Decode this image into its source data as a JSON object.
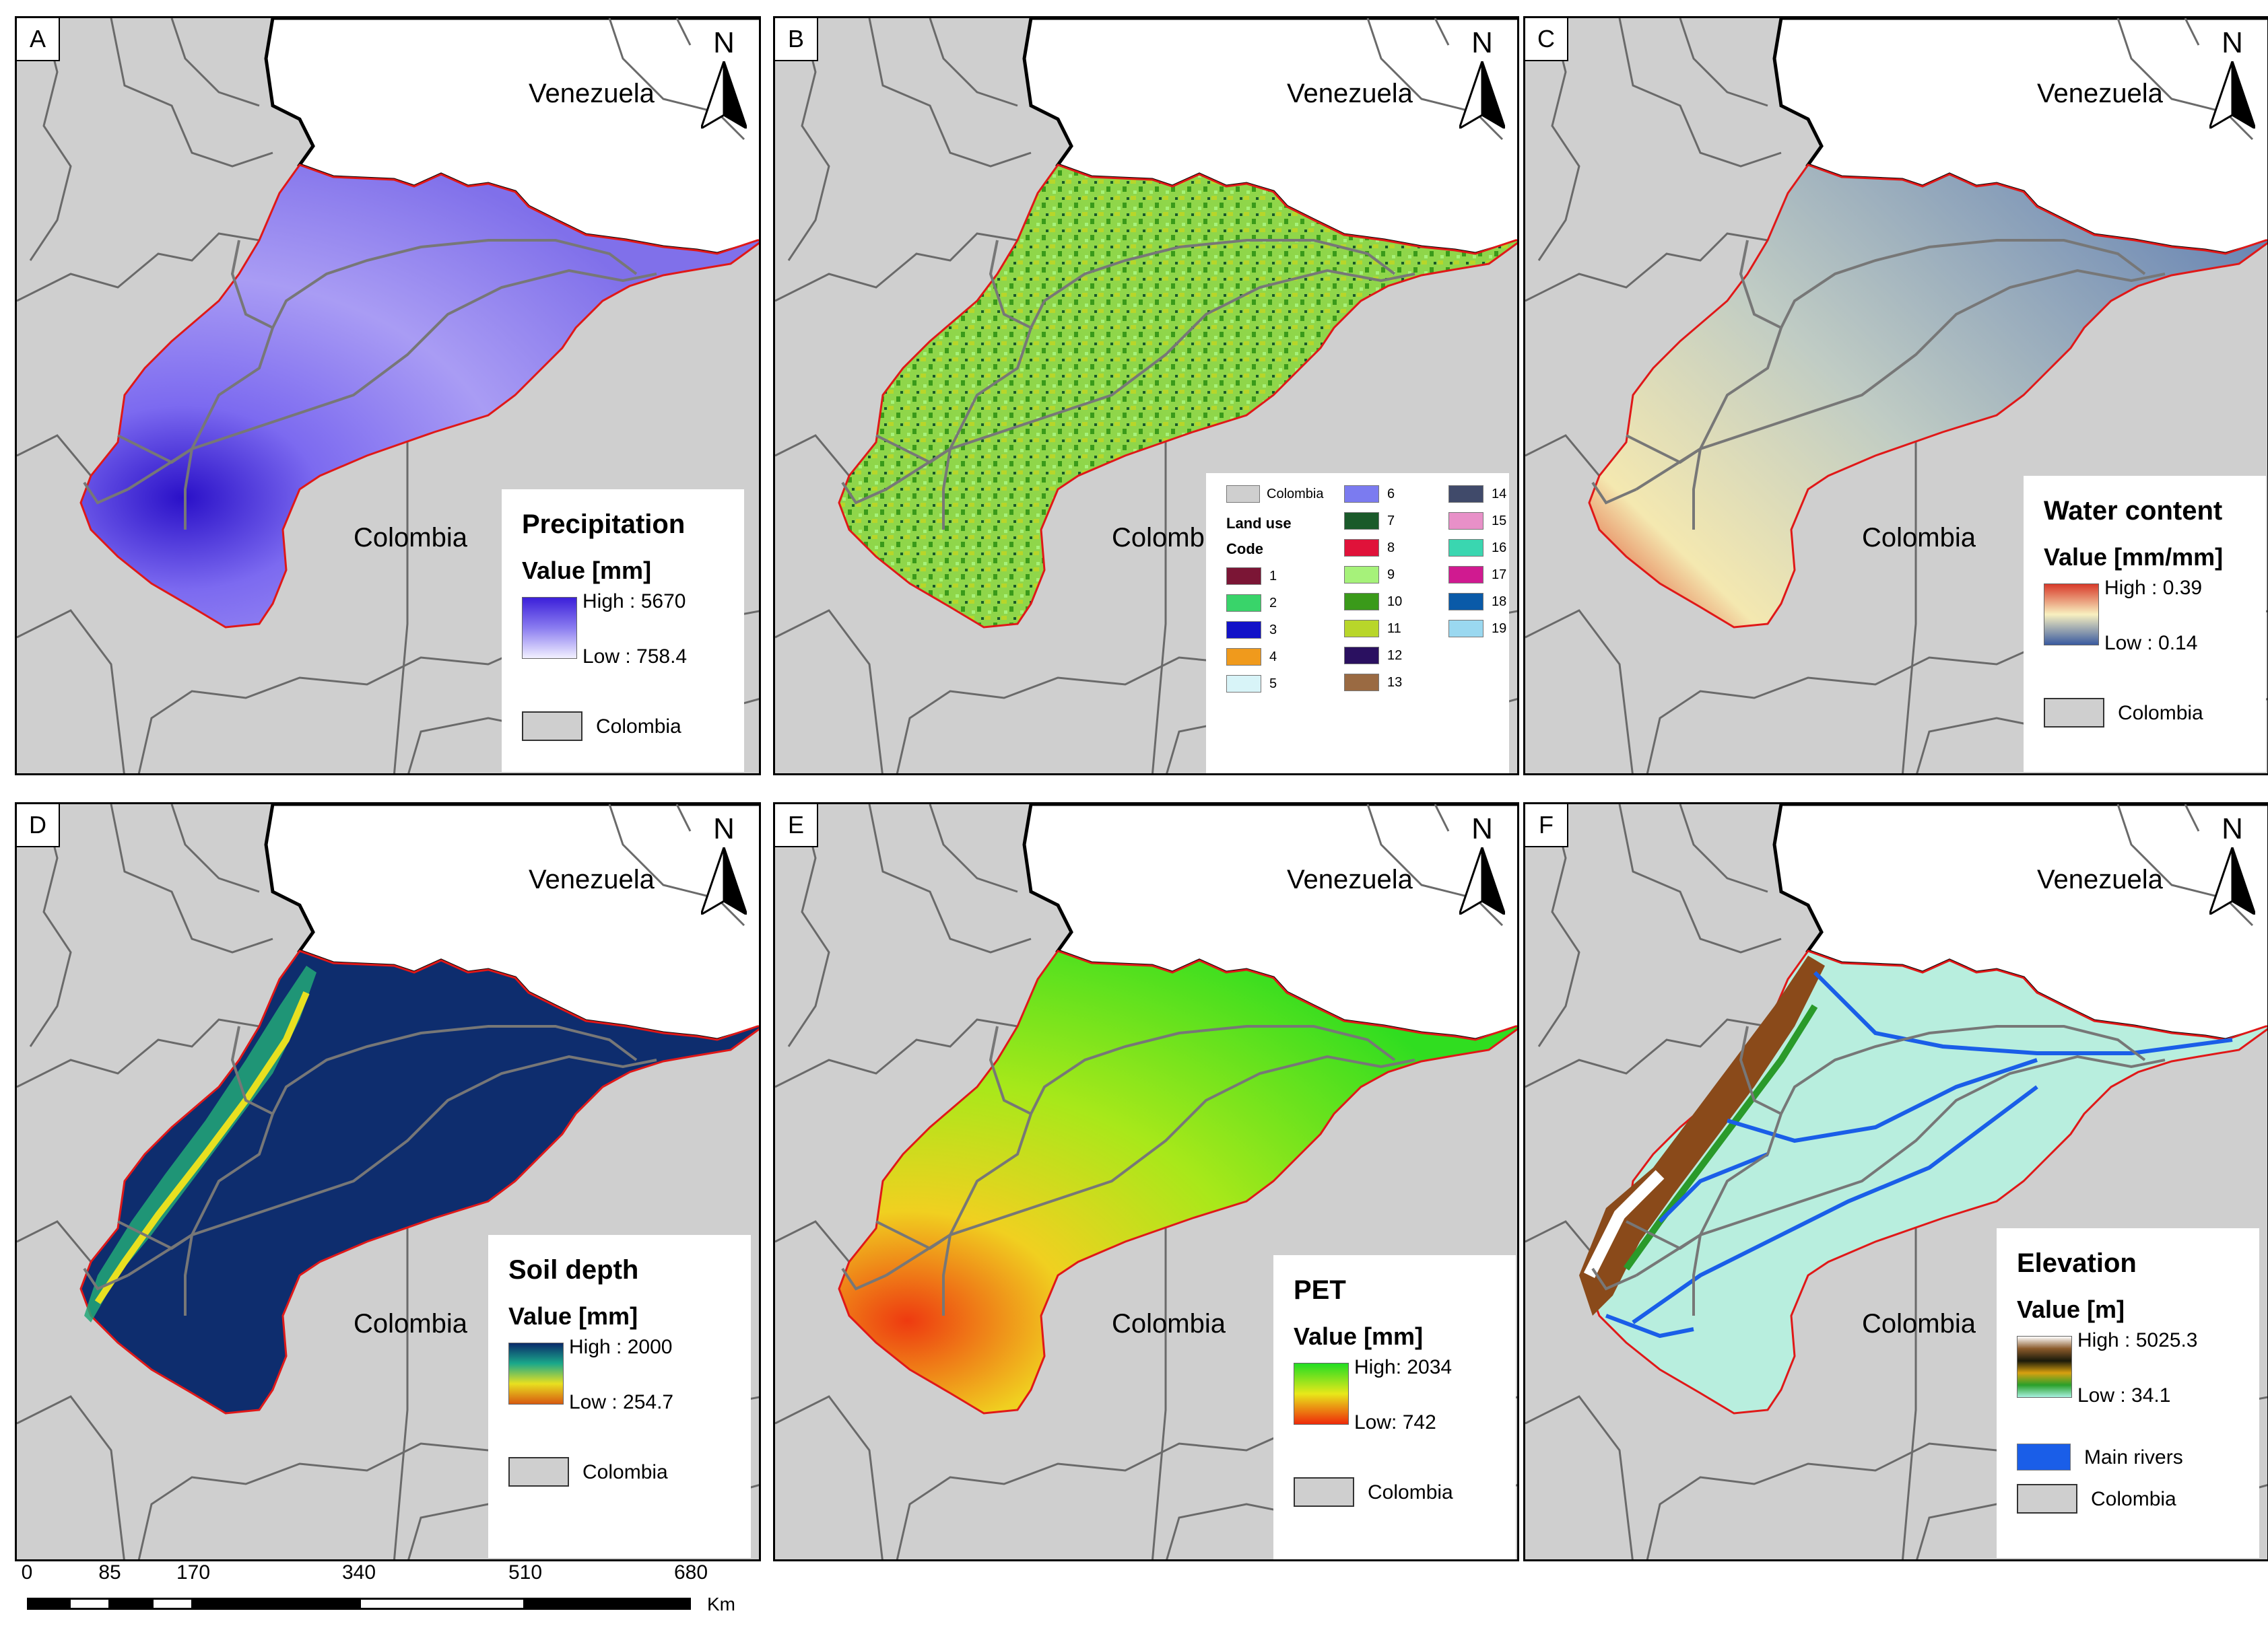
{
  "panels": [
    {
      "id": "A",
      "label": "A",
      "country_north": "Venezuela",
      "country_south": "Colombia",
      "north": "N",
      "basin_fill": "precip",
      "legend": {
        "title": "Precipitation",
        "subtitle": "Value [mm]",
        "high": "High : 5670",
        "low": "Low : 758.4",
        "ramp": [
          "#3b1fd9",
          "#8a7cf0",
          "#f2f0ff"
        ],
        "boundary": "Colombia"
      }
    },
    {
      "id": "B",
      "label": "B",
      "country_north": "Venezuela",
      "country_south": "Colombia",
      "north": "N",
      "basin_fill": "landuse",
      "legend": {
        "boundary": "Colombia",
        "title": "Land use",
        "subtitle": "Code",
        "classes": [
          {
            "code": "1",
            "color": "#7b1535"
          },
          {
            "code": "2",
            "color": "#39d46a"
          },
          {
            "code": "3",
            "color": "#1212c8"
          },
          {
            "code": "4",
            "color": "#f09a1c"
          },
          {
            "code": "5",
            "color": "#d8f4f8"
          },
          {
            "code": "6",
            "color": "#7b7bf0"
          },
          {
            "code": "7",
            "color": "#1a5a2a"
          },
          {
            "code": "8",
            "color": "#e0123a"
          },
          {
            "code": "9",
            "color": "#a6f27a"
          },
          {
            "code": "10",
            "color": "#3a9a1a"
          },
          {
            "code": "11",
            "color": "#b8d62a"
          },
          {
            "code": "12",
            "color": "#2a1060"
          },
          {
            "code": "13",
            "color": "#9a6a42"
          },
          {
            "code": "14",
            "color": "#404a6a"
          },
          {
            "code": "15",
            "color": "#e890c8"
          },
          {
            "code": "16",
            "color": "#3ad6b0"
          },
          {
            "code": "17",
            "color": "#d01a90"
          },
          {
            "code": "18",
            "color": "#0a5aa8"
          },
          {
            "code": "19",
            "color": "#9ad8f0"
          }
        ]
      }
    },
    {
      "id": "C",
      "label": "C",
      "country_north": "Venezuela",
      "country_south": "Colombia",
      "north": "N",
      "basin_fill": "water",
      "legend": {
        "title": "Water content",
        "subtitle": "Value [mm/mm]",
        "high": "High : 0.39",
        "low": "Low : 0.14",
        "ramp": [
          "#d83a2a",
          "#f8f0c0",
          "#3a5aa0"
        ],
        "boundary": "Colombia"
      }
    },
    {
      "id": "D",
      "label": "D",
      "country_north": "Venezuela",
      "country_south": "Colombia",
      "north": "N",
      "basin_fill": "soil",
      "legend": {
        "title": "Soil depth",
        "subtitle": "Value [mm]",
        "high": "High : 2000",
        "low": "Low : 254.7",
        "ramp": [
          "#0a2a6a",
          "#1aa88a",
          "#e8e020",
          "#d85a10"
        ],
        "boundary": "Colombia"
      }
    },
    {
      "id": "E",
      "label": "E",
      "country_north": "Venezuela",
      "country_south": "Colombia",
      "north": "N",
      "basin_fill": "pet",
      "legend": {
        "title": "PET",
        "subtitle": "Value [mm]",
        "high": "High: 2034",
        "low": "Low: 742",
        "ramp": [
          "#22dd22",
          "#e8e81a",
          "#ee2a0a"
        ],
        "boundary": "Colombia"
      }
    },
    {
      "id": "F",
      "label": "F",
      "country_north": "Venezuela",
      "country_south": "Colombia",
      "north": "N",
      "basin_fill": "elev",
      "legend": {
        "title": "Elevation",
        "subtitle": "Value [m]",
        "high": "High : 5025.3",
        "low": "Low : 34.1",
        "ramp": [
          "#ffffff",
          "#8a5a2a",
          "#1a1a0a",
          "#d8a010",
          "#2aa02a",
          "#a8f0e0"
        ],
        "rivers": "Main rivers",
        "river_color": "#1a5ee8",
        "boundary": "Colombia"
      }
    }
  ],
  "scale": {
    "ticks": [
      "0",
      "85",
      "170",
      "340",
      "510",
      "680"
    ],
    "unit": "Km"
  }
}
